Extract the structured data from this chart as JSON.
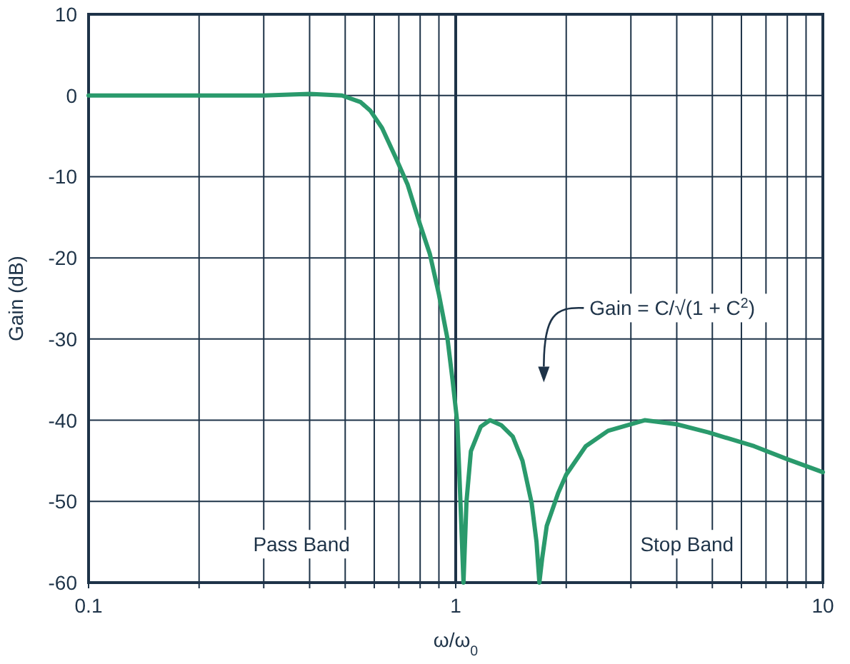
{
  "chart_data": {
    "type": "line",
    "xlabel": "ω/ω$_{0}$",
    "ylabel": "Gain (dB)",
    "log": "x",
    "grid": true,
    "marker": "none",
    "line_style": "solid",
    "xlim": [
      0.1,
      10
    ],
    "ylim": [
      -60,
      10
    ],
    "xticks": [
      0.1,
      {
        "value": 0.2,
        "label": null
      },
      {
        "value": 0.3,
        "label": null
      },
      {
        "value": 0.4,
        "label": null
      },
      {
        "value": 0.5,
        "label": null
      },
      {
        "value": 0.6,
        "label": null
      },
      {
        "value": 0.7,
        "label": null
      },
      {
        "value": 0.8,
        "label": null
      },
      {
        "value": 0.9,
        "label": null
      },
      1,
      {
        "value": 2,
        "label": null
      },
      {
        "value": 3,
        "label": null
      },
      {
        "value": 4,
        "label": null
      },
      {
        "value": 5,
        "label": null
      },
      {
        "value": 6,
        "label": null
      },
      {
        "value": 7,
        "label": null
      },
      {
        "value": 8,
        "label": null
      },
      {
        "value": 9,
        "label": null
      },
      10
    ],
    "yticks": [
      10,
      0,
      -10,
      -20,
      -30,
      -40,
      -50,
      -60
    ],
    "series": [
      {
        "color": "#2a9a6c",
        "x": [
          0.1,
          0.2,
          0.3,
          0.4,
          0.49,
          0.55,
          0.586,
          0.63,
          0.684,
          0.74,
          0.797,
          0.85,
          0.9,
          0.95,
          0.98,
          1.01,
          1.03,
          1.05,
          1.07,
          1.1,
          1.17,
          1.24,
          1.33,
          1.43,
          1.52,
          1.61,
          1.66,
          1.69,
          1.72,
          1.77,
          1.9,
          2.0,
          2.26,
          2.6,
          3.27,
          4.0,
          4.88,
          6.5,
          8.0,
          10
        ],
        "values": [
          0,
          0,
          0,
          0.2,
          0,
          -0.8,
          -1.9,
          -4,
          -7.5,
          -11,
          -15.7,
          -19.5,
          -24.5,
          -30,
          -35,
          -40.3,
          -50,
          -60,
          -50,
          -43.8,
          -40.8,
          -40,
          -40.6,
          -42,
          -45,
          -50.2,
          -55,
          -60,
          -57,
          -53,
          -49,
          -46.7,
          -43.2,
          -41.3,
          -40,
          -40.5,
          -41.5,
          -43.2,
          -44.8,
          -46.4
        ]
      }
    ],
    "ref_lines": [
      {
        "axis": "x",
        "value": 1,
        "color": "#1e3348",
        "line_style": "solid"
      }
    ],
    "annotations": [
      "Gain = C/√(1 + C$^{2}$)",
      "Pass Band",
      "Stop Band"
    ]
  }
}
